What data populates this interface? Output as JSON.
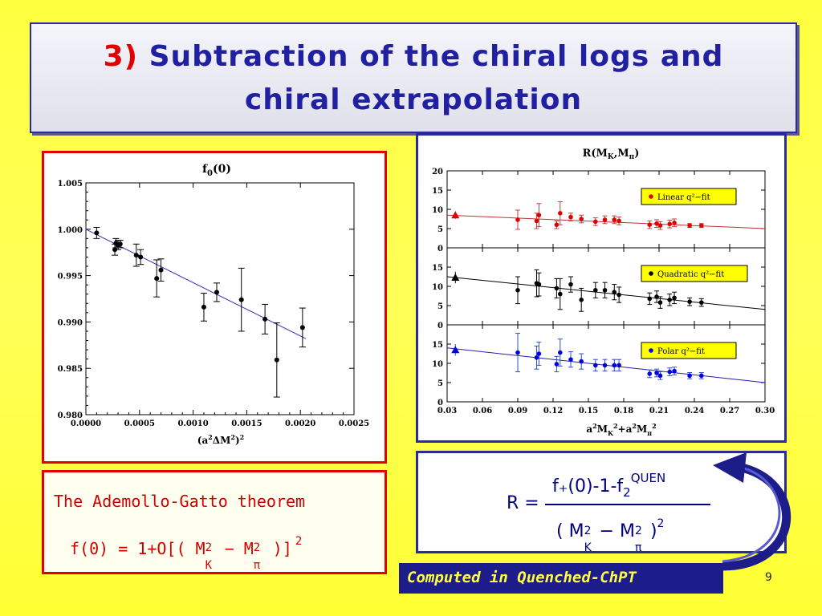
{
  "slide": {
    "title_number": "3)",
    "title_line1": "Subtraction of the chiral logs and",
    "title_line2": "chiral extrapolation",
    "page_number": "9"
  },
  "left_chart": {
    "title_main": "f",
    "title_sub": "0",
    "title_tail": "(0)",
    "xlabel_main": "(a",
    "xlabel_mid": "ΔM",
    "xlabel_tail": ")",
    "xlabel_sup": "2",
    "x_ticks": [
      "0.0000",
      "0.0005",
      "0.0010",
      "0.0015",
      "0.0020",
      "0.0025"
    ],
    "y_ticks": [
      "0.980",
      "0.985",
      "0.990",
      "0.995",
      "1.000",
      "1.005"
    ]
  },
  "right_chart": {
    "title_main": "R(M",
    "title_sub1": "K",
    "title_mid": ",M",
    "title_sub2": "π",
    "title_tail": ")",
    "xlabel": "a²M²K+a²M²π",
    "x_ticks": [
      "0.03",
      "0.06",
      "0.09",
      "0.12",
      "0.15",
      "0.18",
      "0.21",
      "0.24",
      "0.27",
      "0.30"
    ],
    "y_ticks": [
      "0",
      "5",
      "10",
      "15",
      "20"
    ],
    "legend_linear": "Linear q²−fit",
    "legend_quadratic": "Quadratic q²−fit",
    "legend_polar": "Polar q²−fit"
  },
  "theorem": {
    "heading": "The Ademollo-Gatto theorem",
    "formula_a": "f(0) = 1+O[( M",
    "formula_b": " − M",
    "formula_c": " )]",
    "sup2": "2",
    "subK": "K",
    "subPi": "π"
  },
  "ratio_formula": {
    "lhs": "R =",
    "numerator": "f₊(0)-1-f",
    "num_sub": "2",
    "num_sup": "QUEN",
    "denominator_a": "( M",
    "denominator_b": " − M",
    "denominator_c": " )",
    "sup2": "2",
    "subK": "K",
    "subPi": "π"
  },
  "computed_label": "Computed in Quenched-ChPT",
  "chart_data": [
    {
      "type": "scatter",
      "title": "f0(0)",
      "xlabel": "(a²ΔM²)²",
      "xlim": [
        0,
        0.0025
      ],
      "ylim": [
        0.98,
        1.005
      ],
      "fit_line": [
        [
          0.0,
          1.0
        ],
        [
          0.00205,
          0.9882
        ]
      ],
      "points": [
        {
          "x": 0.0001,
          "y": 0.9996,
          "err": 0.0006
        },
        {
          "x": 0.00027,
          "y": 0.9978,
          "err": 0.0006
        },
        {
          "x": 0.00028,
          "y": 0.9985,
          "err": 0.0005
        },
        {
          "x": 0.0003,
          "y": 0.9983,
          "err": 0.0005
        },
        {
          "x": 0.00032,
          "y": 0.9984,
          "err": 0.0004
        },
        {
          "x": 0.00047,
          "y": 0.9972,
          "err": 0.0012
        },
        {
          "x": 0.00051,
          "y": 0.997,
          "err": 0.0008
        },
        {
          "x": 0.00066,
          "y": 0.9947,
          "err": 0.002
        },
        {
          "x": 0.0007,
          "y": 0.9956,
          "err": 0.0012
        },
        {
          "x": 0.0011,
          "y": 0.9916,
          "err": 0.0015
        },
        {
          "x": 0.00122,
          "y": 0.9932,
          "err": 0.001
        },
        {
          "x": 0.00145,
          "y": 0.9924,
          "err": 0.0034
        },
        {
          "x": 0.00167,
          "y": 0.9903,
          "err": 0.0016
        },
        {
          "x": 0.00178,
          "y": 0.9859,
          "err": 0.004
        },
        {
          "x": 0.00202,
          "y": 0.9894,
          "err": 0.0021
        }
      ]
    },
    {
      "type": "scatter",
      "title": "R(MK,Mπ)",
      "xlabel": "a²M²K+a²M²π",
      "xlim": [
        0.03,
        0.3
      ],
      "ylim": [
        0,
        20
      ],
      "panels": [
        {
          "name": "Linear q²−fit",
          "color": "#e00000",
          "fit_line": [
            [
              0.03,
              8.5
            ],
            [
              0.3,
              5.0
            ]
          ],
          "triangle": {
            "x": 0.037,
            "y": 8.5,
            "err": 1.0
          },
          "points": [
            {
              "x": 0.09,
              "y": 7.3,
              "err": 2.5
            },
            {
              "x": 0.106,
              "y": 7.0,
              "err": 2.0
            },
            {
              "x": 0.108,
              "y": 8.5,
              "err": 3.0
            },
            {
              "x": 0.123,
              "y": 6.0,
              "err": 1.0
            },
            {
              "x": 0.126,
              "y": 9.0,
              "err": 3.0
            },
            {
              "x": 0.135,
              "y": 8.0,
              "err": 1.0
            },
            {
              "x": 0.144,
              "y": 7.5,
              "err": 1.0
            },
            {
              "x": 0.156,
              "y": 6.8,
              "err": 1.0
            },
            {
              "x": 0.164,
              "y": 7.3,
              "err": 1.0
            },
            {
              "x": 0.172,
              "y": 7.3,
              "err": 1.0
            },
            {
              "x": 0.176,
              "y": 7.0,
              "err": 1.0
            },
            {
              "x": 0.202,
              "y": 6.0,
              "err": 1.0
            },
            {
              "x": 0.208,
              "y": 6.3,
              "err": 1.0
            },
            {
              "x": 0.211,
              "y": 5.8,
              "err": 1.0
            },
            {
              "x": 0.219,
              "y": 6.2,
              "err": 1.0
            },
            {
              "x": 0.223,
              "y": 6.5,
              "err": 1.0
            },
            {
              "x": 0.236,
              "y": 5.8,
              "err": 0.5
            },
            {
              "x": 0.246,
              "y": 5.8,
              "err": 0.5
            }
          ]
        },
        {
          "name": "Quadratic q²−fit",
          "color": "#000000",
          "fit_line": [
            [
              0.03,
              12.5
            ],
            [
              0.3,
              4.0
            ]
          ],
          "triangle": {
            "x": 0.037,
            "y": 12.3,
            "err": 1.5
          },
          "points": [
            {
              "x": 0.09,
              "y": 9.0,
              "err": 3.5
            },
            {
              "x": 0.106,
              "y": 10.8,
              "err": 3.5
            },
            {
              "x": 0.108,
              "y": 10.5,
              "err": 3.0
            },
            {
              "x": 0.123,
              "y": 9.5,
              "err": 2.5
            },
            {
              "x": 0.126,
              "y": 8.0,
              "err": 4.0
            },
            {
              "x": 0.135,
              "y": 10.5,
              "err": 2.0
            },
            {
              "x": 0.144,
              "y": 6.5,
              "err": 3.0
            },
            {
              "x": 0.156,
              "y": 9.0,
              "err": 2.0
            },
            {
              "x": 0.164,
              "y": 9.0,
              "err": 2.0
            },
            {
              "x": 0.172,
              "y": 8.5,
              "err": 2.0
            },
            {
              "x": 0.176,
              "y": 7.8,
              "err": 2.0
            },
            {
              "x": 0.202,
              "y": 6.8,
              "err": 1.5
            },
            {
              "x": 0.208,
              "y": 7.3,
              "err": 1.5
            },
            {
              "x": 0.211,
              "y": 5.8,
              "err": 1.5
            },
            {
              "x": 0.219,
              "y": 6.5,
              "err": 1.5
            },
            {
              "x": 0.223,
              "y": 7.0,
              "err": 1.5
            },
            {
              "x": 0.236,
              "y": 6.0,
              "err": 1.0
            },
            {
              "x": 0.246,
              "y": 5.8,
              "err": 1.0
            }
          ]
        },
        {
          "name": "Polar q²−fit",
          "color": "#0000e0",
          "fit_line": [
            [
              0.03,
              14.0
            ],
            [
              0.3,
              5.0
            ]
          ],
          "triangle": {
            "x": 0.037,
            "y": 13.5,
            "err": 1.5
          },
          "points": [
            {
              "x": 0.09,
              "y": 12.8,
              "err": 5.0
            },
            {
              "x": 0.106,
              "y": 11.5,
              "err": 3.0
            },
            {
              "x": 0.108,
              "y": 12.5,
              "err": 3.0
            },
            {
              "x": 0.123,
              "y": 9.8,
              "err": 2.0
            },
            {
              "x": 0.126,
              "y": 12.8,
              "err": 3.5
            },
            {
              "x": 0.135,
              "y": 11.0,
              "err": 2.0
            },
            {
              "x": 0.144,
              "y": 10.5,
              "err": 2.0
            },
            {
              "x": 0.156,
              "y": 9.5,
              "err": 1.5
            },
            {
              "x": 0.164,
              "y": 9.5,
              "err": 1.5
            },
            {
              "x": 0.172,
              "y": 9.5,
              "err": 1.5
            },
            {
              "x": 0.176,
              "y": 9.5,
              "err": 1.5
            },
            {
              "x": 0.202,
              "y": 7.3,
              "err": 1.0
            },
            {
              "x": 0.208,
              "y": 7.5,
              "err": 1.0
            },
            {
              "x": 0.211,
              "y": 6.8,
              "err": 1.0
            },
            {
              "x": 0.219,
              "y": 7.8,
              "err": 1.0
            },
            {
              "x": 0.223,
              "y": 8.0,
              "err": 1.0
            },
            {
              "x": 0.236,
              "y": 6.8,
              "err": 0.8
            },
            {
              "x": 0.246,
              "y": 6.8,
              "err": 0.8
            }
          ]
        }
      ]
    }
  ]
}
